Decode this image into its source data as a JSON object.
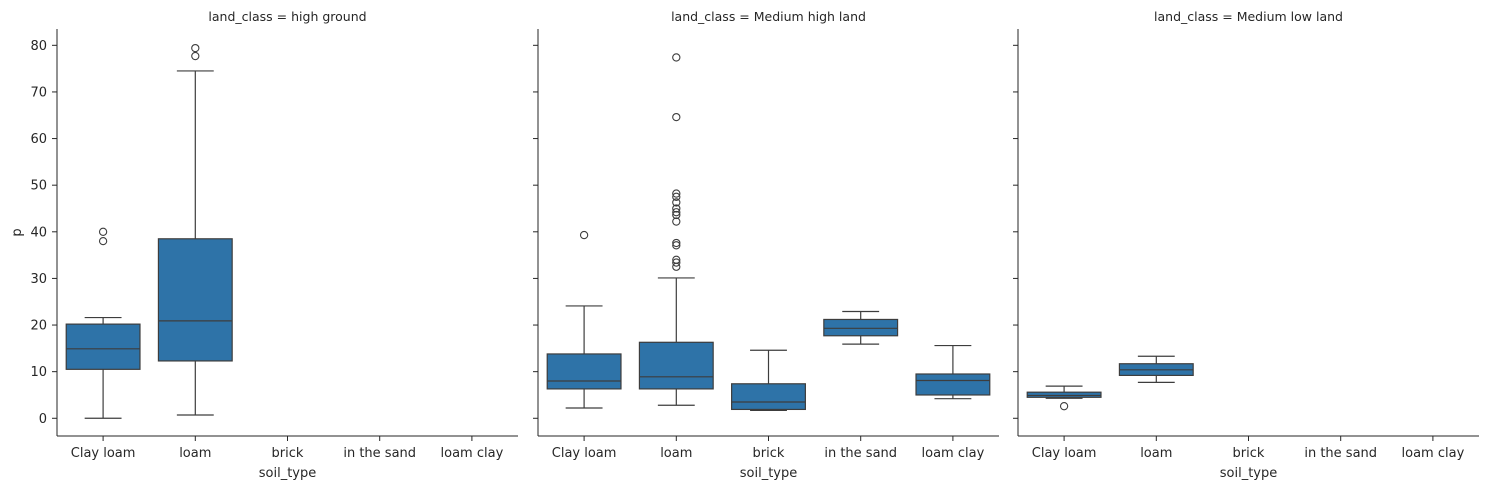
{
  "chart_data": {
    "type": "box",
    "facet_variable": "land_class",
    "xlabel": "soil_type",
    "ylabel": "p",
    "ylim": [
      -3.8,
      83.5
    ],
    "yticks": [
      0,
      10,
      20,
      30,
      40,
      50,
      60,
      70,
      80
    ],
    "categories": [
      "Clay loam",
      "loam",
      "brick",
      "in the sand",
      "loam clay"
    ],
    "colors": {
      "box_fill": "#2e73a8",
      "line": "#3d3d3d",
      "axis": "#262626"
    },
    "panels": [
      {
        "title": "land_class = high ground",
        "boxes": [
          {
            "category": "Clay loam",
            "whisker_low": 0.0,
            "q1": 10.5,
            "median": 14.9,
            "q3": 20.2,
            "whisker_high": 21.6,
            "outliers": [
              38.0,
              40.0
            ]
          },
          {
            "category": "loam",
            "whisker_low": 0.7,
            "q1": 12.3,
            "median": 20.9,
            "q3": 38.5,
            "whisker_high": 74.5,
            "outliers": [
              77.7,
              79.4
            ]
          }
        ]
      },
      {
        "title": "land_class = Medium high land",
        "boxes": [
          {
            "category": "Clay loam",
            "whisker_low": 2.2,
            "q1": 6.3,
            "median": 8.0,
            "q3": 13.8,
            "whisker_high": 24.1,
            "outliers": [
              39.3
            ]
          },
          {
            "category": "loam",
            "whisker_low": 2.8,
            "q1": 6.3,
            "median": 8.9,
            "q3": 16.3,
            "whisker_high": 30.1,
            "outliers": [
              32.5,
              33.4,
              34.0,
              37.1,
              37.6,
              42.2,
              43.6,
              44.2,
              45.0,
              46.3,
              47.5,
              48.2,
              64.6,
              77.4
            ]
          },
          {
            "category": "brick",
            "whisker_low": 1.7,
            "q1": 1.9,
            "median": 3.5,
            "q3": 7.4,
            "whisker_high": 14.6
          },
          {
            "category": "in the sand",
            "whisker_low": 15.9,
            "q1": 17.7,
            "median": 19.3,
            "q3": 21.2,
            "whisker_high": 22.9
          },
          {
            "category": "loam clay",
            "whisker_low": 4.2,
            "q1": 5.0,
            "median": 8.1,
            "q3": 9.5,
            "whisker_high": 15.6
          }
        ]
      },
      {
        "title": "land_class = Medium low land",
        "boxes": [
          {
            "category": "Clay loam",
            "whisker_low": 4.3,
            "q1": 4.5,
            "median": 4.9,
            "q3": 5.6,
            "whisker_high": 6.9,
            "outliers": [
              2.6
            ]
          },
          {
            "category": "loam",
            "whisker_low": 7.7,
            "q1": 9.2,
            "median": 10.4,
            "q3": 11.7,
            "whisker_high": 13.3
          }
        ]
      }
    ]
  }
}
